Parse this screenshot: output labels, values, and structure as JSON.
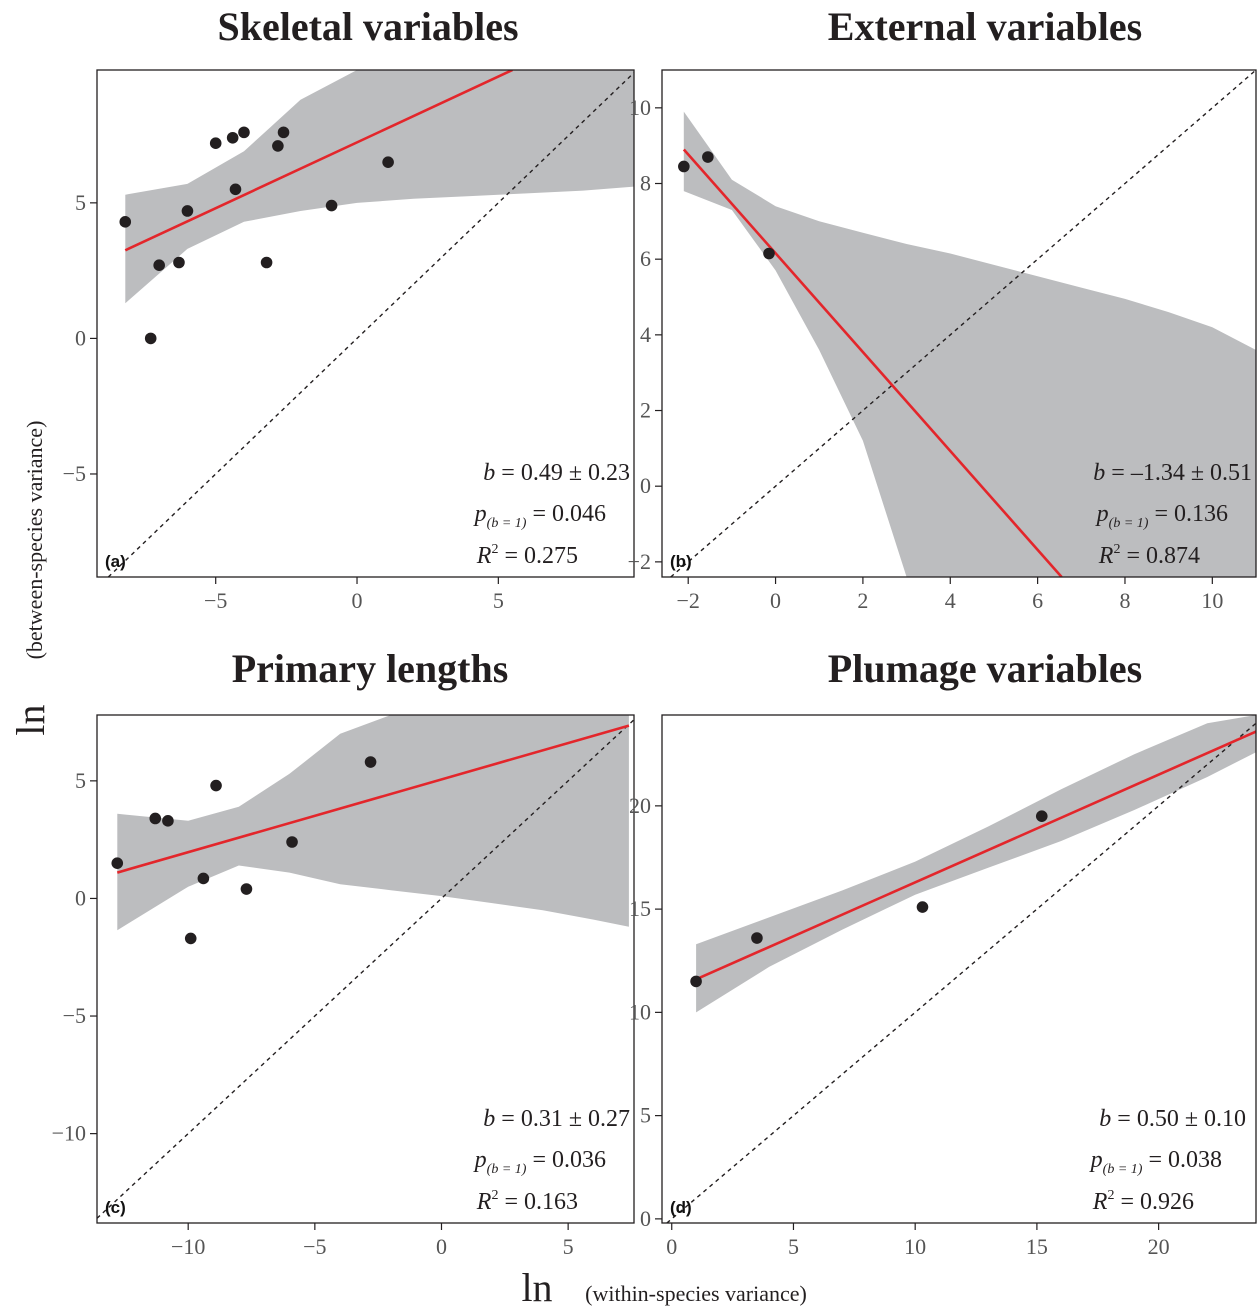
{
  "axes": {
    "ylabel_ln": "ln",
    "ylabel_sub": "(between-species variance)",
    "xlabel_ln": "ln",
    "xlabel_sub": "(within-species variance)"
  },
  "colors": {
    "band": "#bcbdbf",
    "fit": "#e3262b",
    "point": "#231f20",
    "identity": "#231f20"
  },
  "chart_data": [
    {
      "type": "scatter",
      "panel": "(a)",
      "title": "Skeletal variables",
      "xlim": [
        -9.2,
        9.8
      ],
      "ylim": [
        -8.8,
        9.9
      ],
      "xticks": [
        -5,
        0,
        5
      ],
      "yticks": [
        -5,
        0,
        5
      ],
      "x": [
        -8.2,
        -7.0,
        -6.3,
        -6.0,
        -5.0,
        -4.4,
        -4.3,
        -4.0,
        -3.2,
        -2.8,
        -2.6,
        -0.9,
        1.1,
        -7.3
      ],
      "y": [
        4.3,
        2.7,
        2.8,
        4.7,
        7.2,
        7.4,
        5.5,
        7.6,
        2.8,
        7.1,
        7.6,
        4.9,
        6.5,
        0.0
      ],
      "fit": {
        "x": [
          -8.2,
          5.5
        ],
        "y": [
          3.25,
          9.9
        ]
      },
      "band": {
        "x": [
          -8.2,
          -6.0,
          -4.0,
          -2.0,
          0.0,
          2.0,
          4.0,
          6.0,
          8.0,
          9.8
        ],
        "upper": [
          5.3,
          5.7,
          6.9,
          8.8,
          9.9,
          9.9,
          9.9,
          9.9,
          9.9,
          9.9
        ],
        "lower": [
          1.3,
          3.3,
          4.3,
          4.7,
          5.0,
          5.15,
          5.25,
          5.35,
          5.45,
          5.6
        ]
      },
      "stats": {
        "b": "= 0.49 ± 0.23",
        "p": "= 0.046",
        "r2": "= 0.275"
      }
    },
    {
      "type": "scatter",
      "panel": "(b)",
      "title": "External variables",
      "xlim": [
        -2.6,
        11.0
      ],
      "ylim": [
        -2.4,
        11.0
      ],
      "xticks": [
        -2,
        0,
        2,
        4,
        6,
        8,
        10
      ],
      "yticks": [
        -2,
        0,
        2,
        4,
        6,
        8,
        10
      ],
      "x": [
        -2.1,
        -1.55,
        -0.15
      ],
      "y": [
        8.45,
        8.7,
        6.15
      ],
      "fit": {
        "x": [
          -2.1,
          6.55
        ],
        "y": [
          8.9,
          -2.4
        ]
      },
      "band": {
        "x": [
          -2.1,
          -1.0,
          0.0,
          1.0,
          2.0,
          3.0,
          4.0,
          5.0,
          6.0,
          7.0,
          8.0,
          9.0,
          10.0,
          11.0
        ],
        "upper": [
          9.9,
          8.1,
          7.4,
          7.0,
          6.7,
          6.4,
          6.15,
          5.85,
          5.55,
          5.25,
          4.95,
          4.6,
          4.2,
          3.6
        ],
        "lower": [
          7.8,
          7.3,
          5.7,
          3.6,
          1.2,
          -2.4,
          -2.4,
          -2.4,
          -2.4,
          -2.4,
          -2.4,
          -2.4,
          -2.4,
          -2.4
        ]
      },
      "stats": {
        "b": "= –1.34 ± 0.51",
        "p": "= 0.136",
        "r2": "= 0.874"
      }
    },
    {
      "type": "scatter",
      "panel": "(c)",
      "title": "Primary lengths",
      "xlim": [
        -13.6,
        7.6
      ],
      "ylim": [
        -13.8,
        7.8
      ],
      "xticks": [
        -10,
        -5,
        0,
        5
      ],
      "yticks": [
        -10,
        -5,
        0,
        5
      ],
      "x": [
        -12.8,
        -11.3,
        -10.8,
        -9.9,
        -9.4,
        -8.9,
        -7.7,
        -5.9,
        -2.8
      ],
      "y": [
        1.5,
        3.4,
        3.3,
        -1.7,
        0.85,
        4.8,
        0.4,
        2.4,
        5.8
      ],
      "fit": {
        "x": [
          -12.8,
          7.4
        ],
        "y": [
          1.1,
          7.35
        ]
      },
      "band": {
        "x": [
          -12.8,
          -10.0,
          -8.0,
          -6.0,
          -4.0,
          -2.0,
          0.0,
          2.0,
          4.0,
          6.0,
          7.4
        ],
        "upper": [
          3.6,
          3.3,
          3.9,
          5.3,
          7.0,
          7.8,
          7.8,
          7.8,
          7.8,
          7.8,
          7.8
        ],
        "lower": [
          -1.35,
          0.5,
          1.4,
          1.1,
          0.6,
          0.35,
          0.1,
          -0.2,
          -0.5,
          -0.9,
          -1.2
        ]
      },
      "stats": {
        "b": "= 0.31 ± 0.27",
        "p": "= 0.036",
        "r2": "= 0.163"
      }
    },
    {
      "type": "scatter",
      "panel": "(d)",
      "title": "Plumage variables",
      "xlim": [
        -0.4,
        24.0
      ],
      "ylim": [
        -0.2,
        24.4
      ],
      "xticks": [
        0,
        5,
        10,
        15,
        20
      ],
      "yticks": [
        0,
        5,
        10,
        15,
        20
      ],
      "x": [
        1.0,
        3.5,
        10.3,
        15.2
      ],
      "y": [
        11.5,
        13.6,
        15.1,
        19.5
      ],
      "fit": {
        "x": [
          1.0,
          24.0
        ],
        "y": [
          11.6,
          23.6
        ]
      },
      "band": {
        "x": [
          1.0,
          4.0,
          7.0,
          10.0,
          13.0,
          16.0,
          19.0,
          22.0,
          24.0
        ],
        "upper": [
          13.3,
          14.6,
          15.9,
          17.3,
          19.0,
          20.8,
          22.5,
          24.0,
          24.4
        ],
        "lower": [
          10.0,
          12.2,
          14.0,
          15.7,
          17.0,
          18.3,
          19.8,
          21.4,
          22.6
        ]
      },
      "stats": {
        "b": "= 0.50 ± 0.10",
        "p": "= 0.038",
        "r2": "= 0.926"
      }
    }
  ]
}
